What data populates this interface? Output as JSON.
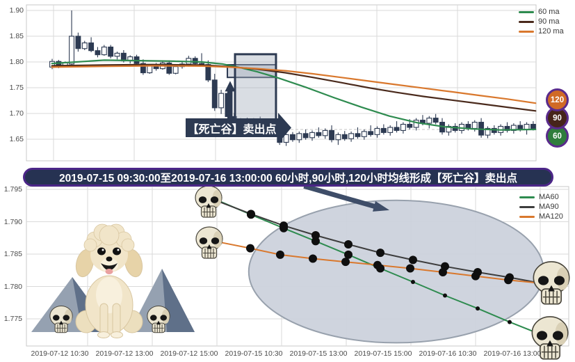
{
  "top_chart": {
    "y_ticks": [
      "1.90",
      "1.85",
      "1.80",
      "1.75",
      "1.70",
      "1.65"
    ],
    "legend": [
      {
        "label": "60 ma",
        "color": "#2e8b4f"
      },
      {
        "label": "90 ma",
        "color": "#4a2a1c"
      },
      {
        "label": "120 ma",
        "color": "#d9782d"
      }
    ],
    "badges": [
      {
        "label": "120",
        "color": "#d06a26"
      },
      {
        "label": "90",
        "color": "#46241a"
      },
      {
        "label": "60",
        "color": "#2f7d3c"
      }
    ],
    "annotation_label": "【死亡谷】卖出点"
  },
  "banner": {
    "text": "2019-07-15 09:30:00至2019-07-16 13:00:00 60小时,90小时,120小时均线形成【死亡谷】卖出点"
  },
  "bottom_chart": {
    "y_ticks": [
      "1.795",
      "1.790",
      "1.785",
      "1.780",
      "1.775"
    ],
    "x_ticks": [
      "2019-07-12 10:30",
      "2019-07-12 13:00",
      "2019-07-12 15:00",
      "2019-07-15 10:30",
      "2019-07-15 13:00",
      "2019-07-15 15:00",
      "2019-07-16 10:30",
      "2019-07-16 13:00"
    ],
    "legend": [
      {
        "label": "MA60",
        "color": "#2e8b4f"
      },
      {
        "label": "MA90",
        "color": "#3d3d3d"
      },
      {
        "label": "MA120",
        "color": "#d9782d"
      }
    ],
    "decorations": {
      "skull_icons": 6,
      "poodle_dog": true,
      "mountains": 2
    }
  },
  "chart_data": [
    {
      "type": "candlestick",
      "title": "",
      "ylim": [
        1.63,
        1.905
      ],
      "y_ticks": [
        1.9,
        1.85,
        1.8,
        1.75,
        1.7,
        1.65
      ],
      "candle_color_up": "#ffffff",
      "candle_color_down": "#2d3a52",
      "candles": [
        [
          1.79,
          1.806,
          1.786,
          1.801
        ],
        [
          1.801,
          1.804,
          1.788,
          1.792
        ],
        [
          1.792,
          1.801,
          1.79,
          1.799
        ],
        [
          1.796,
          1.9,
          1.793,
          1.85
        ],
        [
          1.85,
          1.857,
          1.82,
          1.826
        ],
        [
          1.826,
          1.841,
          1.823,
          1.837
        ],
        [
          1.837,
          1.848,
          1.819,
          1.822
        ],
        [
          1.822,
          1.829,
          1.809,
          1.814
        ],
        [
          1.814,
          1.833,
          1.812,
          1.829
        ],
        [
          1.829,
          1.833,
          1.807,
          1.811
        ],
        [
          1.811,
          1.82,
          1.805,
          1.817
        ],
        [
          1.817,
          1.823,
          1.799,
          1.802
        ],
        [
          1.802,
          1.813,
          1.797,
          1.81
        ],
        [
          1.81,
          1.814,
          1.794,
          1.797
        ],
        [
          1.797,
          1.805,
          1.775,
          1.779
        ],
        [
          1.779,
          1.796,
          1.777,
          1.793
        ],
        [
          1.793,
          1.798,
          1.783,
          1.787
        ],
        [
          1.787,
          1.801,
          1.785,
          1.798
        ],
        [
          1.798,
          1.803,
          1.775,
          1.778
        ],
        [
          1.778,
          1.794,
          1.776,
          1.791
        ],
        [
          1.791,
          1.8,
          1.787,
          1.796
        ],
        [
          1.796,
          1.812,
          1.791,
          1.807
        ],
        [
          1.807,
          1.811,
          1.794,
          1.797
        ],
        [
          1.797,
          1.817,
          1.793,
          1.795
        ],
        [
          1.795,
          1.803,
          1.761,
          1.765
        ],
        [
          1.765,
          1.777,
          1.705,
          1.711
        ],
        [
          1.711,
          1.746,
          1.699,
          1.739
        ],
        [
          1.739,
          1.743,
          1.689,
          1.694
        ],
        [
          1.694,
          1.701,
          1.669,
          1.675
        ],
        [
          1.675,
          1.691,
          1.671,
          1.687
        ],
        [
          1.687,
          1.692,
          1.673,
          1.677
        ],
        [
          1.677,
          1.691,
          1.669,
          1.688
        ],
        [
          1.688,
          1.694,
          1.675,
          1.679
        ],
        [
          1.679,
          1.689,
          1.661,
          1.665
        ],
        [
          1.665,
          1.681,
          1.659,
          1.677
        ],
        [
          1.677,
          1.687,
          1.639,
          1.644
        ],
        [
          1.644,
          1.663,
          1.637,
          1.659
        ],
        [
          1.659,
          1.664,
          1.645,
          1.649
        ],
        [
          1.649,
          1.665,
          1.643,
          1.661
        ],
        [
          1.661,
          1.669,
          1.649,
          1.653
        ],
        [
          1.653,
          1.667,
          1.647,
          1.663
        ],
        [
          1.663,
          1.673,
          1.653,
          1.657
        ],
        [
          1.657,
          1.671,
          1.651,
          1.667
        ],
        [
          1.667,
          1.677,
          1.644,
          1.649
        ],
        [
          1.649,
          1.663,
          1.639,
          1.659
        ],
        [
          1.659,
          1.666,
          1.647,
          1.651
        ],
        [
          1.651,
          1.665,
          1.645,
          1.661
        ],
        [
          1.661,
          1.673,
          1.651,
          1.655
        ],
        [
          1.655,
          1.669,
          1.649,
          1.665
        ],
        [
          1.665,
          1.677,
          1.655,
          1.659
        ],
        [
          1.659,
          1.675,
          1.653,
          1.671
        ],
        [
          1.671,
          1.679,
          1.659,
          1.663
        ],
        [
          1.663,
          1.677,
          1.657,
          1.673
        ],
        [
          1.673,
          1.685,
          1.663,
          1.667
        ],
        [
          1.667,
          1.683,
          1.661,
          1.679
        ],
        [
          1.679,
          1.689,
          1.669,
          1.673
        ],
        [
          1.673,
          1.691,
          1.667,
          1.687
        ],
        [
          1.687,
          1.697,
          1.677,
          1.681
        ],
        [
          1.681,
          1.695,
          1.671,
          1.691
        ],
        [
          1.691,
          1.699,
          1.679,
          1.683
        ],
        [
          1.683,
          1.691,
          1.659,
          1.664
        ],
        [
          1.664,
          1.679,
          1.657,
          1.675
        ],
        [
          1.675,
          1.681,
          1.663,
          1.667
        ],
        [
          1.667,
          1.683,
          1.661,
          1.679
        ],
        [
          1.679,
          1.685,
          1.667,
          1.671
        ],
        [
          1.671,
          1.687,
          1.665,
          1.683
        ],
        [
          1.683,
          1.691,
          1.653,
          1.658
        ],
        [
          1.658,
          1.675,
          1.652,
          1.671
        ],
        [
          1.671,
          1.677,
          1.659,
          1.663
        ],
        [
          1.663,
          1.679,
          1.657,
          1.675
        ],
        [
          1.675,
          1.683,
          1.663,
          1.667
        ],
        [
          1.667,
          1.681,
          1.661,
          1.677
        ],
        [
          1.677,
          1.685,
          1.665,
          1.669
        ],
        [
          1.669,
          1.683,
          1.659,
          1.679
        ],
        [
          1.679,
          1.685,
          1.667,
          1.671
        ]
      ],
      "series": [
        {
          "name": "60 ma",
          "color": "#2e8b4f",
          "points": [
            [
              0.05,
              1.797
            ],
            [
              0.098,
              1.8
            ],
            [
              0.153,
              1.8035
            ],
            [
              0.221,
              1.8025
            ],
            [
              0.289,
              1.8015
            ],
            [
              0.344,
              1.8
            ],
            [
              0.385,
              1.796
            ],
            [
              0.419,
              1.789
            ],
            [
              0.453,
              1.781
            ],
            [
              0.494,
              1.769
            ],
            [
              0.548,
              1.751
            ],
            [
              0.603,
              1.731
            ],
            [
              0.658,
              1.712
            ],
            [
              0.712,
              1.695
            ],
            [
              0.767,
              1.682
            ],
            [
              0.821,
              1.674
            ],
            [
              0.876,
              1.67
            ],
            [
              0.93,
              1.668
            ],
            [
              0.999,
              1.669
            ]
          ]
        },
        {
          "name": "90 ma",
          "color": "#4a2a1c",
          "points": [
            [
              0.05,
              1.7925
            ],
            [
              0.153,
              1.794
            ],
            [
              0.248,
              1.795
            ],
            [
              0.344,
              1.794
            ],
            [
              0.398,
              1.791
            ],
            [
              0.453,
              1.786
            ],
            [
              0.508,
              1.779
            ],
            [
              0.562,
              1.77
            ],
            [
              0.617,
              1.76
            ],
            [
              0.671,
              1.75
            ],
            [
              0.726,
              1.741
            ],
            [
              0.78,
              1.733
            ],
            [
              0.835,
              1.726
            ],
            [
              0.889,
              1.719
            ],
            [
              0.944,
              1.712
            ],
            [
              0.999,
              1.705
            ]
          ]
        },
        {
          "name": "120 ma",
          "color": "#d9782d",
          "points": [
            [
              0.05,
              1.79
            ],
            [
              0.153,
              1.7915
            ],
            [
              0.248,
              1.7925
            ],
            [
              0.344,
              1.792
            ],
            [
              0.398,
              1.79
            ],
            [
              0.453,
              1.787
            ],
            [
              0.508,
              1.783
            ],
            [
              0.562,
              1.777
            ],
            [
              0.617,
              1.77
            ],
            [
              0.671,
              1.763
            ],
            [
              0.726,
              1.756
            ],
            [
              0.78,
              1.749
            ],
            [
              0.835,
              1.742
            ],
            [
              0.889,
              1.735
            ],
            [
              0.944,
              1.728
            ],
            [
              0.999,
              1.72
            ]
          ]
        }
      ],
      "annotations": {
        "death_valley_rect": {
          "x": [
            0.4093,
            0.4897
          ],
          "y": [
            1.815,
            1.682
          ]
        },
        "entry_rect": {
          "x": [
            0.3943,
            0.4897
          ],
          "y": [
            1.7946,
            1.77
          ]
        },
        "up_arrow": {
          "x": 0.3997,
          "y": [
            1.69,
            1.763
          ]
        },
        "label": "【死亡谷】卖出点",
        "badges": [
          "120",
          "90",
          "60"
        ]
      },
      "legend_position": "right"
    },
    {
      "type": "line",
      "title": "",
      "x_ticks": [
        "2019-07-12 10:30",
        "2019-07-12 13:00",
        "2019-07-12 15:00",
        "2019-07-15 10:30",
        "2019-07-15 13:00",
        "2019-07-15 15:00",
        "2019-07-16 10:30",
        "2019-07-16 13:00"
      ],
      "ylim": [
        1.7705,
        1.7955
      ],
      "y_ticks": [
        1.795,
        1.79,
        1.785,
        1.78,
        1.775
      ],
      "series": [
        {
          "name": "MA60",
          "color": "#2e8b4f",
          "points": [
            [
              0.3551,
              1.7932
            ],
            [
              0.4141,
              1.7911
            ],
            [
              0.4744,
              1.789
            ],
            [
              0.5333,
              1.787
            ],
            [
              0.5936,
              1.7849
            ],
            [
              0.6526,
              1.7828
            ],
            [
              0.7128,
              1.7807
            ],
            [
              0.7718,
              1.7786
            ],
            [
              0.8321,
              1.7766
            ],
            [
              0.891,
              1.7745
            ],
            [
              0.9333,
              1.7731
            ]
          ],
          "dot_sizes": [
            0,
            6,
            6,
            6,
            6,
            6,
            3,
            3,
            3,
            3,
            0
          ]
        },
        {
          "name": "MA90",
          "color": "#3d3d3d",
          "points": [
            [
              0.3551,
              1.7931
            ],
            [
              0.4141,
              1.7912
            ],
            [
              0.4744,
              1.7894
            ],
            [
              0.5333,
              1.7879
            ],
            [
              0.5936,
              1.7865
            ],
            [
              0.6526,
              1.7852
            ],
            [
              0.7128,
              1.7841
            ],
            [
              0.7718,
              1.7831
            ],
            [
              0.8321,
              1.7822
            ],
            [
              0.891,
              1.7814
            ],
            [
              0.9359,
              1.7807
            ]
          ],
          "dot_sizes": [
            0,
            6,
            6,
            6,
            6,
            6,
            6,
            6,
            6,
            6,
            0
          ]
        },
        {
          "name": "MA120",
          "color": "#d9782d",
          "points": [
            [
              0.359,
              1.7868
            ],
            [
              0.4128,
              1.7859
            ],
            [
              0.4679,
              1.7849
            ],
            [
              0.5282,
              1.7843
            ],
            [
              0.5885,
              1.7838
            ],
            [
              0.6474,
              1.7833
            ],
            [
              0.7077,
              1.7828
            ],
            [
              0.7679,
              1.7822
            ],
            [
              0.8282,
              1.7816
            ],
            [
              0.8885,
              1.781
            ],
            [
              0.9359,
              1.7806
            ]
          ],
          "dot_sizes": [
            0,
            6,
            6,
            6,
            6,
            6,
            6,
            6,
            6,
            6,
            0
          ]
        }
      ],
      "annotations": {
        "highlight_ellipse": {
          "cx_frac": 0.682,
          "cy_value": 1.7823,
          "rx_frac": 0.272,
          "ry_value": 0.011
        },
        "arrow_from_banner": {
          "from": [
            0.512,
            1.7955
          ],
          "to": [
            0.659,
            1.792
          ]
        }
      },
      "legend_position": "upper right"
    }
  ]
}
